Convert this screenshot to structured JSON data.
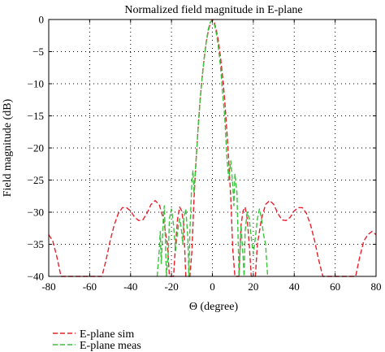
{
  "chart_data": {
    "type": "line",
    "title": "Normalized field magnitude in E-plane",
    "xlabel": "Θ (degree)",
    "ylabel": "Field magnitude (dB)",
    "xlim": [
      -80,
      80
    ],
    "ylim": [
      -40,
      0
    ],
    "xticks": [
      -80,
      -60,
      -40,
      -20,
      0,
      20,
      40,
      60,
      80
    ],
    "yticks": [
      0,
      -5,
      -10,
      -15,
      -20,
      -25,
      -30,
      -35,
      -40
    ],
    "grid": true,
    "legend_position": "bottom-left, below plot",
    "series": [
      {
        "name": "E-plane sim",
        "color": "#e8202a",
        "dash": "dashed",
        "points": [
          [
            -80,
            -33.5
          ],
          [
            -78,
            -34.5
          ],
          [
            -76,
            -37
          ],
          [
            -74,
            -40
          ],
          [
            -54,
            -40
          ],
          [
            -52,
            -37.5
          ],
          [
            -50,
            -34.5
          ],
          [
            -48,
            -32
          ],
          [
            -46,
            -30.2
          ],
          [
            -44,
            -29.3
          ],
          [
            -42,
            -29.3
          ],
          [
            -40,
            -29.8
          ],
          [
            -38,
            -30.8
          ],
          [
            -36,
            -31.3
          ],
          [
            -34,
            -31.2
          ],
          [
            -32,
            -30.2
          ],
          [
            -30,
            -28.8
          ],
          [
            -28,
            -28.2
          ],
          [
            -26,
            -28.8
          ],
          [
            -24,
            -31
          ],
          [
            -22,
            -35
          ],
          [
            -21,
            -40
          ],
          [
            -19,
            -40
          ],
          [
            -18,
            -35
          ],
          [
            -17,
            -31
          ],
          [
            -16,
            -29.2
          ],
          [
            -15,
            -29.8
          ],
          [
            -14,
            -32
          ],
          [
            -13,
            -40
          ],
          [
            -11,
            -40
          ],
          [
            -10,
            -36
          ],
          [
            -9,
            -28
          ],
          [
            -8,
            -22
          ],
          [
            -7,
            -17
          ],
          [
            -6,
            -12.5
          ],
          [
            -5,
            -9
          ],
          [
            -4,
            -6
          ],
          [
            -3,
            -3.5
          ],
          [
            -2,
            -1.8
          ],
          [
            -1,
            -0.5
          ],
          [
            0,
            0
          ],
          [
            1,
            -0.5
          ],
          [
            2,
            -1.8
          ],
          [
            3,
            -3.5
          ],
          [
            4,
            -6
          ],
          [
            5,
            -9
          ],
          [
            6,
            -12.5
          ],
          [
            7,
            -17
          ],
          [
            8,
            -22
          ],
          [
            9,
            -28
          ],
          [
            10,
            -36
          ],
          [
            11,
            -40
          ],
          [
            13,
            -40
          ],
          [
            14,
            -32
          ],
          [
            15,
            -29.8
          ],
          [
            16,
            -29.2
          ],
          [
            17,
            -31
          ],
          [
            18,
            -35
          ],
          [
            19,
            -40
          ],
          [
            21,
            -40
          ],
          [
            22,
            -35
          ],
          [
            24,
            -31
          ],
          [
            26,
            -28.8
          ],
          [
            28,
            -28.2
          ],
          [
            30,
            -28.8
          ],
          [
            32,
            -30.2
          ],
          [
            34,
            -31.2
          ],
          [
            36,
            -31.3
          ],
          [
            38,
            -30.8
          ],
          [
            40,
            -29.8
          ],
          [
            42,
            -29.3
          ],
          [
            44,
            -29.3
          ],
          [
            46,
            -30.2
          ],
          [
            48,
            -32
          ],
          [
            50,
            -34.5
          ],
          [
            52,
            -37.5
          ],
          [
            54,
            -40
          ],
          [
            70,
            -40
          ],
          [
            72,
            -37
          ],
          [
            74,
            -34.5
          ],
          [
            76,
            -33.5
          ],
          [
            78,
            -33
          ],
          [
            80,
            -33.5
          ]
        ]
      },
      {
        "name": "E-plane meas",
        "color": "#3cc23c",
        "dash": "dashed",
        "points": [
          [
            -27,
            -40
          ],
          [
            -26,
            -36
          ],
          [
            -25.5,
            -33
          ],
          [
            -25,
            -38
          ],
          [
            -24,
            -31
          ],
          [
            -23.5,
            -29
          ],
          [
            -23,
            -34
          ],
          [
            -22.5,
            -40
          ],
          [
            -21.5,
            -36
          ],
          [
            -21,
            -31
          ],
          [
            -20,
            -29.5
          ],
          [
            -19,
            -32
          ],
          [
            -18,
            -36
          ],
          [
            -17,
            -33
          ],
          [
            -16,
            -31
          ],
          [
            -15,
            -33
          ],
          [
            -14.5,
            -35
          ],
          [
            -14,
            -31
          ],
          [
            -13,
            -29.5
          ],
          [
            -12,
            -34
          ],
          [
            -11.5,
            -40
          ],
          [
            -11,
            -33
          ],
          [
            -10,
            -25
          ],
          [
            -9.5,
            -23.5
          ],
          [
            -9,
            -27
          ],
          [
            -8,
            -22
          ],
          [
            -7,
            -17
          ],
          [
            -6,
            -12.5
          ],
          [
            -5,
            -9
          ],
          [
            -4,
            -6
          ],
          [
            -3,
            -3.5
          ],
          [
            -2,
            -1.5
          ],
          [
            -1,
            -0.4
          ],
          [
            0,
            -0.2
          ],
          [
            1,
            -0.8
          ],
          [
            2,
            -2.3
          ],
          [
            3,
            -4.5
          ],
          [
            4,
            -7.5
          ],
          [
            5,
            -11.5
          ],
          [
            6,
            -15
          ],
          [
            7,
            -21
          ],
          [
            8,
            -25
          ],
          [
            9,
            -22
          ],
          [
            10,
            -26
          ],
          [
            10.5,
            -29
          ],
          [
            11,
            -24
          ],
          [
            12,
            -27
          ],
          [
            12.5,
            -33
          ],
          [
            13,
            -40
          ],
          [
            14,
            -32
          ],
          [
            15,
            -37
          ],
          [
            15.5,
            -40
          ],
          [
            16,
            -33
          ],
          [
            17,
            -30
          ],
          [
            18,
            -31
          ],
          [
            19,
            -34
          ],
          [
            20,
            -36.5
          ],
          [
            21,
            -34
          ],
          [
            21.5,
            -32.5
          ],
          [
            22,
            -31
          ],
          [
            23,
            -29.5
          ],
          [
            24,
            -31
          ],
          [
            25,
            -33.5
          ],
          [
            26,
            -35
          ],
          [
            27,
            -40
          ]
        ]
      }
    ]
  }
}
